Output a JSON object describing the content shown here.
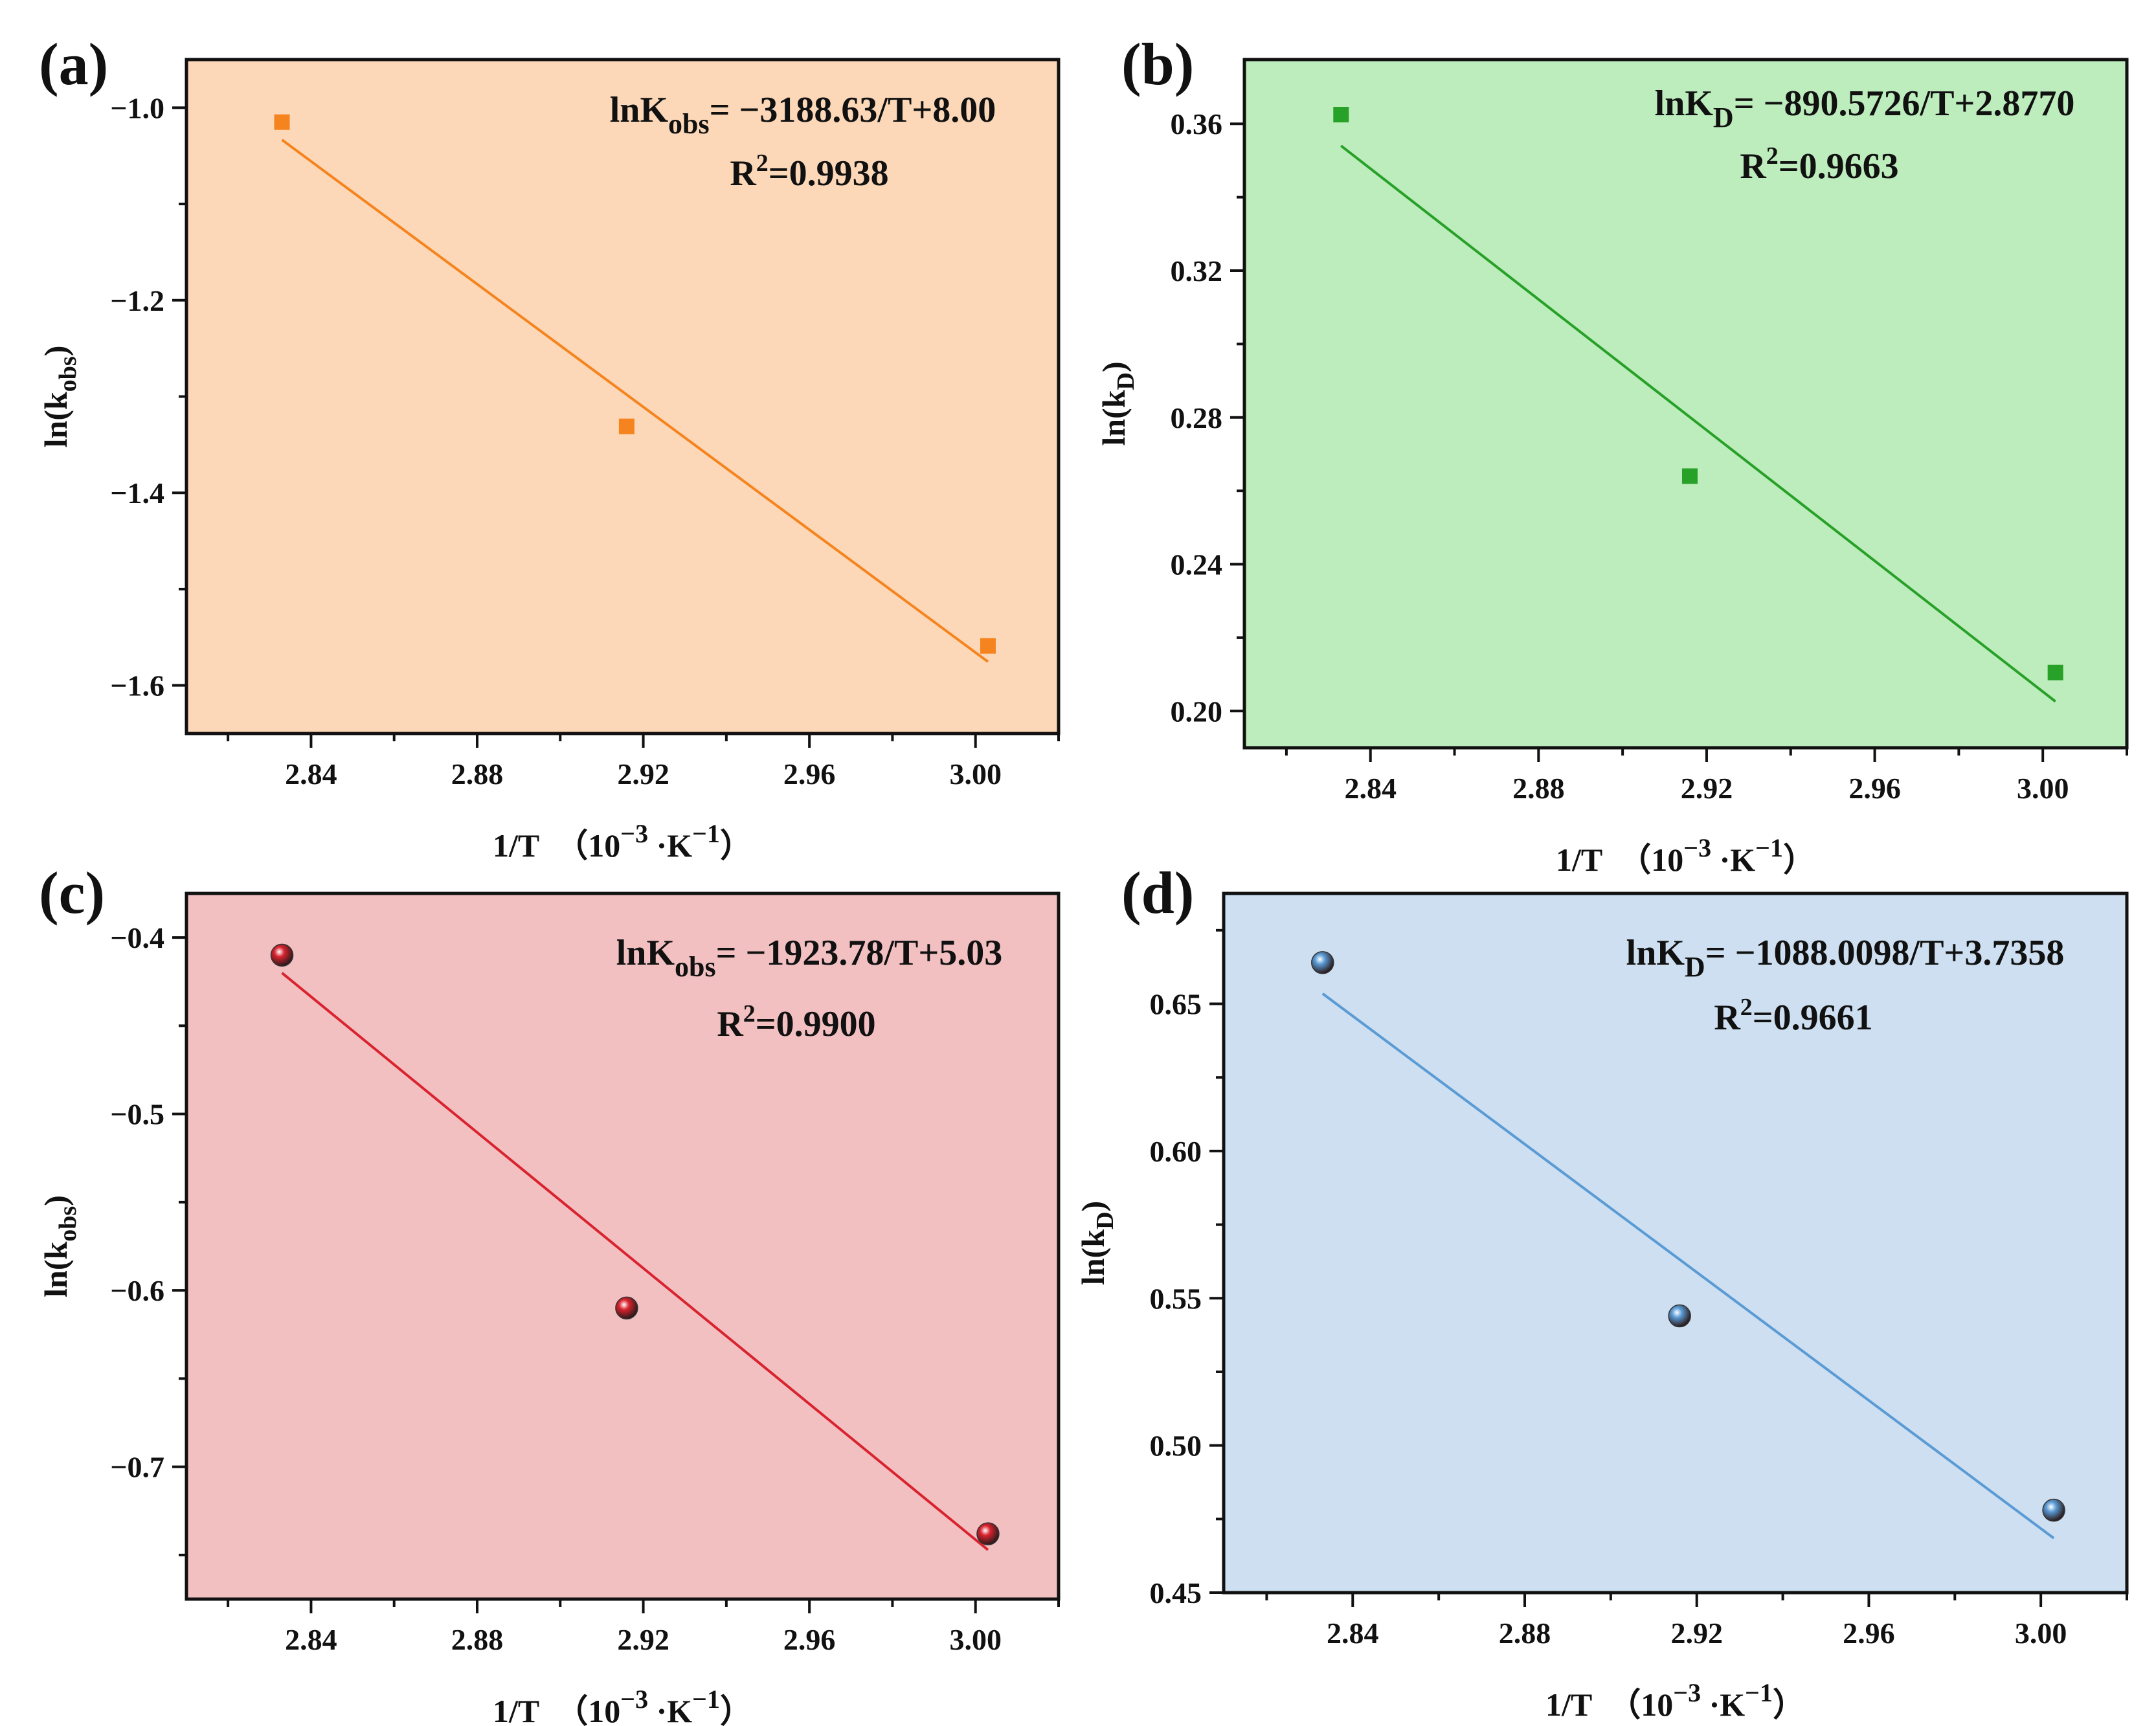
{
  "chart_data": [
    {
      "type": "scatter",
      "panel_label": "(a)",
      "fit_type": "linear",
      "x": [
        2.833,
        2.916,
        3.003
      ],
      "y": [
        -1.015,
        -1.331,
        -1.559
      ],
      "xlim": [
        2.81,
        3.02
      ],
      "ylim": [
        -1.65,
        -0.95
      ],
      "xticks": [
        2.84,
        2.88,
        2.92,
        2.96,
        3.0
      ],
      "xtick_labels": [
        "2.84",
        "2.88",
        "2.92",
        "2.96",
        "3.00"
      ],
      "yticks": [
        -1.0,
        -1.2,
        -1.4,
        -1.6
      ],
      "ytick_labels": [
        "−1.0",
        "−1.2",
        "−1.4",
        "−1.6"
      ],
      "fit": {
        "slope": -3.18863,
        "intercept": 8.0
      },
      "xlabel": {
        "main": "1/T  （10",
        "exp1": "−3",
        "mid": " ·K",
        "exp2": "−1",
        "end": "）"
      },
      "ylabel": {
        "main": "ln(k",
        "sub": "obs",
        "end": ")"
      },
      "equation": {
        "lhs": "lnK",
        "sub": "obs",
        "rhs": "= −3188.63/T+8.00"
      },
      "r2": {
        "lhs": "R",
        "sup": "2",
        "rhs": "=0.9938"
      },
      "marker": "square",
      "colors": {
        "background": "#fcd8b8",
        "series": "#f5841f",
        "line": "#f5841f"
      }
    },
    {
      "type": "scatter",
      "panel_label": "(b)",
      "fit_type": "linear",
      "x": [
        2.833,
        2.916,
        3.003
      ],
      "y": [
        0.3625,
        0.264,
        0.2105
      ],
      "xlim": [
        2.81,
        3.02
      ],
      "ylim": [
        0.19,
        0.3775
      ],
      "xticks": [
        2.84,
        2.88,
        2.92,
        2.96,
        3.0
      ],
      "xtick_labels": [
        "2.84",
        "2.88",
        "2.92",
        "2.96",
        "3.00"
      ],
      "yticks": [
        0.2,
        0.24,
        0.28,
        0.32,
        0.36
      ],
      "ytick_labels": [
        "0.20",
        "0.24",
        "0.28",
        "0.32",
        "0.36"
      ],
      "fit": {
        "slope": -0.8905726,
        "intercept": 2.877
      },
      "xlabel": {
        "main": "1/T  （10",
        "exp1": "−3",
        "mid": " ·K",
        "exp2": "−1",
        "end": "）"
      },
      "ylabel": {
        "main": "ln(k",
        "sub": "D",
        "end": ")"
      },
      "equation": {
        "lhs": "lnK",
        "sub": "D",
        "rhs": "= −890.5726/T+2.8770"
      },
      "r2": {
        "lhs": "R",
        "sup": "2",
        "rhs": "=0.9663"
      },
      "marker": "square",
      "colors": {
        "background": "#bdecbd",
        "series": "#27a127",
        "line": "#27a127"
      }
    },
    {
      "type": "scatter",
      "panel_label": "(c)",
      "fit_type": "linear",
      "x": [
        2.833,
        2.916,
        3.003
      ],
      "y": [
        -0.41,
        -0.61,
        -0.738
      ],
      "xlim": [
        2.81,
        3.02
      ],
      "ylim": [
        -0.775,
        -0.375
      ],
      "xticks": [
        2.84,
        2.88,
        2.92,
        2.96,
        3.0
      ],
      "xtick_labels": [
        "2.84",
        "2.88",
        "2.92",
        "2.96",
        "3.00"
      ],
      "yticks": [
        -0.4,
        -0.5,
        -0.6,
        -0.7
      ],
      "ytick_labels": [
        "−0.4",
        "−0.5",
        "−0.6",
        "−0.7"
      ],
      "fit": {
        "slope": -1.92378,
        "intercept": 5.03
      },
      "xlabel": {
        "main": "1/T  （10",
        "exp1": "−3",
        "mid": " ·K",
        "exp2": "−1",
        "end": "）"
      },
      "ylabel": {
        "main": "ln(k",
        "sub": "obs",
        "end": ")"
      },
      "equation": {
        "lhs": "lnK",
        "sub": "obs",
        "rhs": "= −1923.78/T+5.03"
      },
      "r2": {
        "lhs": "R",
        "sup": "2",
        "rhs": "=0.9900"
      },
      "marker": "sphere",
      "colors": {
        "background": "#f3c0c2",
        "series": "#d9232e",
        "line": "#d9232e"
      }
    },
    {
      "type": "scatter",
      "panel_label": "(d)",
      "fit_type": "linear",
      "x": [
        2.833,
        2.916,
        3.003
      ],
      "y": [
        0.664,
        0.544,
        0.478
      ],
      "xlim": [
        2.81,
        3.02
      ],
      "ylim": [
        0.45,
        0.6875
      ],
      "xticks": [
        2.84,
        2.88,
        2.92,
        2.96,
        3.0
      ],
      "xtick_labels": [
        "2.84",
        "2.88",
        "2.92",
        "2.96",
        "3.00"
      ],
      "yticks": [
        0.45,
        0.5,
        0.55,
        0.6,
        0.65
      ],
      "ytick_labels": [
        "0.45",
        "0.50",
        "0.55",
        "0.60",
        "0.65"
      ],
      "fit": {
        "slope": -1.0880098,
        "intercept": 3.7358
      },
      "xlabel": {
        "main": "1/T  （10",
        "exp1": "−3",
        "mid": " ·K",
        "exp2": "−1",
        "end": "）"
      },
      "ylabel": {
        "main": "ln(k",
        "sub": "D",
        "end": ")"
      },
      "equation": {
        "lhs": "lnK",
        "sub": "D",
        "rhs": "= −1088.0098/T+3.7358"
      },
      "r2": {
        "lhs": "R",
        "sup": "2",
        "rhs": "=0.9661"
      },
      "marker": "sphere",
      "colors": {
        "background": "#cddff0",
        "series": "#5a9bd5",
        "line": "#5a9bd5"
      }
    }
  ]
}
